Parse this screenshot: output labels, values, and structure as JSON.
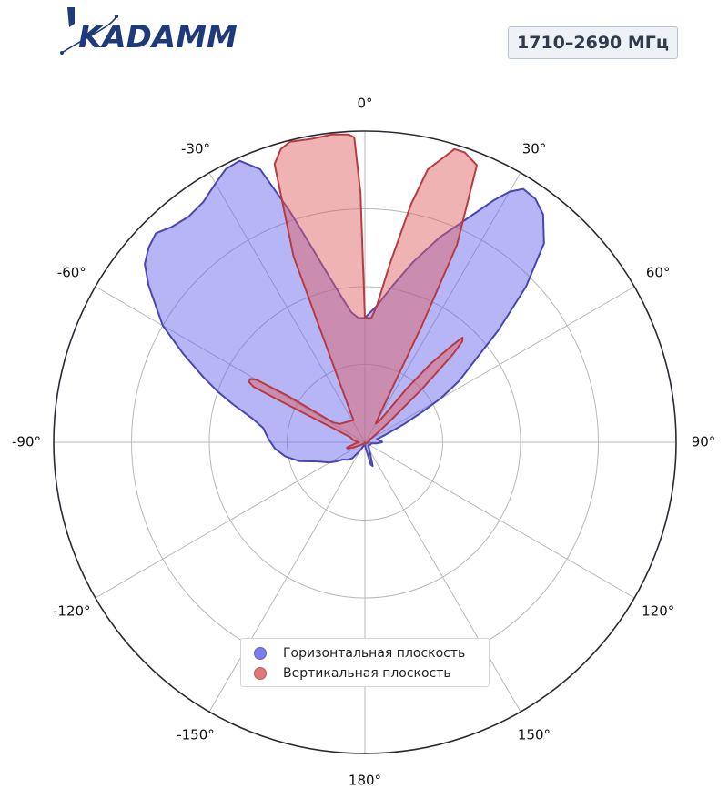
{
  "brand": {
    "name": "KADAMM",
    "color": "#1e3a7a"
  },
  "frequency_label": "1710–2690 МГц",
  "chart_data": {
    "type": "polar",
    "theta_zero": "top",
    "theta_direction": "clockwise",
    "angle_ticks": [
      "0°",
      "30°",
      "60°",
      "90°",
      "120°",
      "150°",
      "180°",
      "-150°",
      "-120°",
      "-90°",
      "-60°",
      "-30°"
    ],
    "angle_tick_values": [
      0,
      30,
      60,
      90,
      120,
      150,
      180,
      -150,
      -120,
      -90,
      -60,
      -30
    ],
    "radial_range": [
      0,
      1
    ],
    "radial_gridlines": [
      0.25,
      0.5,
      0.75
    ],
    "radial_tick_labels": "none",
    "grid": true,
    "legend_position": "bottom-center",
    "series": [
      {
        "name": "Горизонтальная плоскость",
        "color": "#6666ee",
        "edge_color": "#4a46b0",
        "points": [
          [
            0,
            0.4
          ],
          [
            5,
            0.44
          ],
          [
            10,
            0.51
          ],
          [
            15,
            0.6
          ],
          [
            20,
            0.7
          ],
          [
            25,
            0.8
          ],
          [
            28,
            0.88
          ],
          [
            30,
            0.93
          ],
          [
            32,
            0.96
          ],
          [
            35,
            0.955
          ],
          [
            38,
            0.93
          ],
          [
            42,
            0.86
          ],
          [
            46,
            0.72
          ],
          [
            50,
            0.56
          ],
          [
            53,
            0.45
          ],
          [
            57,
            0.36
          ],
          [
            60,
            0.28
          ],
          [
            62,
            0.21
          ],
          [
            65,
            0.14
          ],
          [
            70,
            0.07
          ],
          [
            75,
            0.04
          ],
          [
            80,
            0.045
          ],
          [
            85,
            0.05
          ],
          [
            88,
            0.055
          ],
          [
            90,
            0.055
          ],
          [
            95,
            0.04
          ],
          [
            100,
            0.02
          ],
          [
            110,
            0.02
          ],
          [
            130,
            0.015
          ],
          [
            150,
            0.03
          ],
          [
            162,
            0.08
          ],
          [
            165,
            0.075
          ],
          [
            172,
            0.02
          ],
          [
            180,
            0.01
          ],
          [
            200,
            0.012
          ],
          [
            210,
            0.03
          ],
          [
            218,
            0.065
          ],
          [
            225,
            0.08
          ],
          [
            232,
            0.09
          ],
          [
            236,
            0.11
          ],
          [
            240,
            0.13
          ],
          [
            244,
            0.145
          ],
          [
            248,
            0.165
          ],
          [
            254,
            0.22
          ],
          [
            260,
            0.26
          ],
          [
            266,
            0.29
          ],
          [
            272,
            0.31
          ],
          [
            278,
            0.33
          ],
          [
            282,
            0.37
          ],
          [
            286,
            0.44
          ],
          [
            289,
            0.5
          ],
          [
            292,
            0.56
          ],
          [
            296,
            0.65
          ],
          [
            300,
            0.75
          ],
          [
            303,
            0.8
          ],
          [
            306,
            0.86
          ],
          [
            309,
            0.91
          ],
          [
            312,
            0.935
          ],
          [
            315,
            0.95
          ],
          [
            318,
            0.93
          ],
          [
            322,
            0.92
          ],
          [
            326,
            0.93
          ],
          [
            330,
            0.96
          ],
          [
            333,
            0.985
          ],
          [
            336,
            0.99
          ],
          [
            339,
            0.94
          ],
          [
            342,
            0.78
          ],
          [
            345,
            0.64
          ],
          [
            348,
            0.54
          ],
          [
            351,
            0.47
          ],
          [
            354,
            0.42
          ],
          [
            357,
            0.4
          ]
        ]
      },
      {
        "name": "Вертикальная плоскость",
        "color": "#e06060",
        "edge_color": "#b83a42",
        "points": [
          [
            0,
            0.4
          ],
          [
            3,
            0.4
          ],
          [
            5,
            0.44
          ],
          [
            8,
            0.58
          ],
          [
            11,
            0.78
          ],
          [
            13,
            0.9
          ],
          [
            15,
            0.94
          ],
          [
            17,
            0.985
          ],
          [
            19,
            0.985
          ],
          [
            22,
            0.96
          ],
          [
            25,
            0.7
          ],
          [
            26,
            0.42
          ],
          [
            27,
            0.17
          ],
          [
            28,
            0.1
          ],
          [
            30,
            0.07
          ],
          [
            34,
            0.08
          ],
          [
            38,
            0.22
          ],
          [
            40,
            0.33
          ],
          [
            42,
            0.42
          ],
          [
            43,
            0.46
          ],
          [
            44,
            0.45
          ],
          [
            45,
            0.4
          ],
          [
            47,
            0.25
          ],
          [
            50,
            0.1
          ],
          [
            55,
            0.04
          ],
          [
            60,
            0.02
          ],
          [
            70,
            0.012
          ],
          [
            80,
            0.015
          ],
          [
            90,
            0.01
          ],
          [
            110,
            0.008
          ],
          [
            150,
            0.005
          ],
          [
            180,
            0.0
          ],
          [
            210,
            0.005
          ],
          [
            240,
            0.02
          ],
          [
            246,
            0.04
          ],
          [
            249,
            0.055
          ],
          [
            251,
            0.06
          ],
          [
            254,
            0.06
          ],
          [
            258,
            0.04
          ],
          [
            264,
            0.03
          ],
          [
            270,
            0.02
          ],
          [
            282,
            0.04
          ],
          [
            289,
            0.05
          ],
          [
            294,
            0.11
          ],
          [
            296,
            0.3
          ],
          [
            296.5,
            0.4
          ],
          [
            297.5,
            0.42
          ],
          [
            299,
            0.42
          ],
          [
            300,
            0.4
          ],
          [
            301,
            0.29
          ],
          [
            302,
            0.12
          ],
          [
            306,
            0.1
          ],
          [
            333,
            0.08
          ],
          [
            334,
            0.1
          ],
          [
            339,
            0.64
          ],
          [
            342,
            0.94
          ],
          [
            344,
            0.98
          ],
          [
            346,
            0.995
          ],
          [
            350,
            0.99
          ],
          [
            354,
            0.995
          ],
          [
            357,
            0.99
          ],
          [
            358,
            0.98
          ],
          [
            359,
            0.8
          ],
          [
            0,
            0.4
          ]
        ]
      }
    ]
  }
}
